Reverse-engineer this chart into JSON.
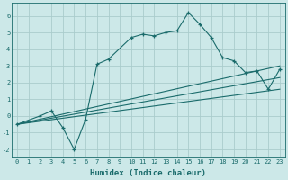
{
  "xlabel": "Humidex (Indice chaleur)",
  "bg_color": "#cce8e8",
  "grid_color": "#aacccc",
  "line_color": "#1a6b6b",
  "xlim": [
    -0.5,
    23.5
  ],
  "ylim": [
    -2.5,
    6.8
  ],
  "xticks": [
    0,
    1,
    2,
    3,
    4,
    5,
    6,
    7,
    8,
    9,
    10,
    11,
    12,
    13,
    14,
    15,
    16,
    17,
    18,
    19,
    20,
    21,
    22,
    23
  ],
  "yticks": [
    -2,
    -1,
    0,
    1,
    2,
    3,
    4,
    5,
    6
  ],
  "jagged_x": [
    0,
    2,
    3,
    4,
    5,
    6,
    7,
    8,
    10,
    11,
    12,
    13,
    14,
    15,
    16,
    17,
    18,
    19,
    20,
    21,
    22,
    23
  ],
  "jagged_y": [
    -0.5,
    0.0,
    0.3,
    -0.7,
    -2.0,
    -0.2,
    3.1,
    3.4,
    4.7,
    4.9,
    4.8,
    5.0,
    5.1,
    6.2,
    5.5,
    4.7,
    3.5,
    3.3,
    2.6,
    2.7,
    1.6,
    2.8
  ],
  "line1_x": [
    0,
    23
  ],
  "line1_y": [
    -0.5,
    1.6
  ],
  "line2_x": [
    0,
    23
  ],
  "line2_y": [
    -0.5,
    2.3
  ],
  "line3_x": [
    0,
    23
  ],
  "line3_y": [
    -0.5,
    3.0
  ],
  "xlabel_fontsize": 6.5,
  "tick_fontsize": 5.0
}
